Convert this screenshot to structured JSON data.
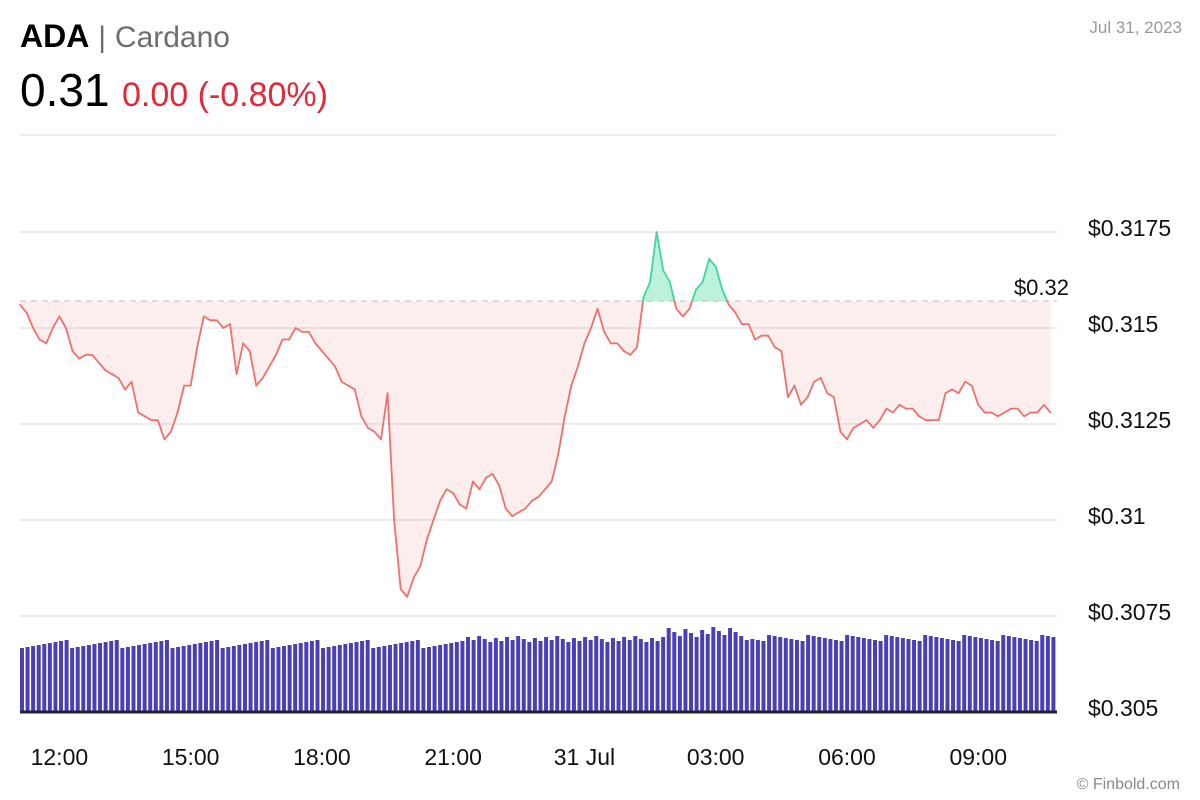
{
  "header": {
    "symbol": "ADA",
    "separator": "|",
    "name": "Cardano",
    "price": "0.31",
    "change": "0.00 (-0.80%)",
    "date": "Jul 31, 2023",
    "watermark": "© Finbold.com"
  },
  "colors": {
    "above_line": "#3ed89a",
    "below_line": "#f07070",
    "volume": "#4b3fb5",
    "change_negative": "#e0293b"
  },
  "chart_data": {
    "type": "line",
    "title": "",
    "xlabel": "",
    "ylabel": "",
    "y_axis_position": "right",
    "grid": true,
    "ylim": [
      0.305,
      0.32
    ],
    "yticks": [
      {
        "label": "$0.3175",
        "value": 0.3175
      },
      {
        "label": "$0.315",
        "value": 0.315
      },
      {
        "label": "$0.3125",
        "value": 0.3125
      },
      {
        "label": "$0.31",
        "value": 0.31
      },
      {
        "label": "$0.3075",
        "value": 0.3075
      },
      {
        "label": "$0.305",
        "value": 0.305
      }
    ],
    "xlim": [
      "2023-07-30 11:06",
      "2023-07-31 10:48"
    ],
    "xticks": [
      {
        "label": "12:00",
        "time": "2023-07-30 12:00"
      },
      {
        "label": "15:00",
        "time": "2023-07-30 15:00"
      },
      {
        "label": "18:00",
        "time": "2023-07-30 18:00"
      },
      {
        "label": "21:00",
        "time": "2023-07-30 21:00"
      },
      {
        "label": "31 Jul",
        "time": "2023-07-31 00:00"
      },
      {
        "label": "03:00",
        "time": "2023-07-31 03:00"
      },
      {
        "label": "06:00",
        "time": "2023-07-31 06:00"
      },
      {
        "label": "09:00",
        "time": "2023-07-31 09:00"
      }
    ],
    "reference_line": {
      "label": "$0.32",
      "value": 0.3157
    },
    "series": [
      {
        "points": [
          [
            "2023-07-30 11:06",
            0.3156
          ],
          [
            "2023-07-30 11:15",
            0.3154
          ],
          [
            "2023-07-30 11:24",
            0.315
          ],
          [
            "2023-07-30 11:33",
            0.3147
          ],
          [
            "2023-07-30 11:42",
            0.3146
          ],
          [
            "2023-07-30 11:51",
            0.315
          ],
          [
            "2023-07-30 12:00",
            0.3153
          ],
          [
            "2023-07-30 12:09",
            0.315
          ],
          [
            "2023-07-30 12:18",
            0.3144
          ],
          [
            "2023-07-30 12:27",
            0.3142
          ],
          [
            "2023-07-30 12:36",
            0.3143
          ],
          [
            "2023-07-30 12:45",
            0.3143
          ],
          [
            "2023-07-30 12:54",
            0.3141
          ],
          [
            "2023-07-30 13:03",
            0.3139
          ],
          [
            "2023-07-30 13:12",
            0.3138
          ],
          [
            "2023-07-30 13:21",
            0.3137
          ],
          [
            "2023-07-30 13:30",
            0.3134
          ],
          [
            "2023-07-30 13:39",
            0.3136
          ],
          [
            "2023-07-30 13:48",
            0.3128
          ],
          [
            "2023-07-30 13:57",
            0.3127
          ],
          [
            "2023-07-30 14:06",
            0.3126
          ],
          [
            "2023-07-30 14:15",
            0.3126
          ],
          [
            "2023-07-30 14:24",
            0.3121
          ],
          [
            "2023-07-30 14:33",
            0.3123
          ],
          [
            "2023-07-30 14:42",
            0.3128
          ],
          [
            "2023-07-30 14:51",
            0.3135
          ],
          [
            "2023-07-30 15:00",
            0.3135
          ],
          [
            "2023-07-30 15:09",
            0.3145
          ],
          [
            "2023-07-30 15:18",
            0.3153
          ],
          [
            "2023-07-30 15:27",
            0.3152
          ],
          [
            "2023-07-30 15:36",
            0.3152
          ],
          [
            "2023-07-30 15:45",
            0.315
          ],
          [
            "2023-07-30 15:54",
            0.3151
          ],
          [
            "2023-07-30 16:03",
            0.3138
          ],
          [
            "2023-07-30 16:12",
            0.3146
          ],
          [
            "2023-07-30 16:21",
            0.3144
          ],
          [
            "2023-07-30 16:30",
            0.3135
          ],
          [
            "2023-07-30 16:39",
            0.3137
          ],
          [
            "2023-07-30 16:48",
            0.314
          ],
          [
            "2023-07-30 16:57",
            0.3143
          ],
          [
            "2023-07-30 17:06",
            0.3147
          ],
          [
            "2023-07-30 17:15",
            0.3147
          ],
          [
            "2023-07-30 17:24",
            0.315
          ],
          [
            "2023-07-30 17:33",
            0.3149
          ],
          [
            "2023-07-30 17:42",
            0.3149
          ],
          [
            "2023-07-30 17:51",
            0.3146
          ],
          [
            "2023-07-30 18:00",
            0.3144
          ],
          [
            "2023-07-30 18:09",
            0.3142
          ],
          [
            "2023-07-30 18:18",
            0.314
          ],
          [
            "2023-07-30 18:27",
            0.3136
          ],
          [
            "2023-07-30 18:36",
            0.3135
          ],
          [
            "2023-07-30 18:45",
            0.3134
          ],
          [
            "2023-07-30 18:54",
            0.3127
          ],
          [
            "2023-07-30 19:03",
            0.3124
          ],
          [
            "2023-07-30 19:12",
            0.3123
          ],
          [
            "2023-07-30 19:21",
            0.3121
          ],
          [
            "2023-07-30 19:30",
            0.3133
          ],
          [
            "2023-07-30 19:39",
            0.31
          ],
          [
            "2023-07-30 19:48",
            0.3082
          ],
          [
            "2023-07-30 19:57",
            0.308
          ],
          [
            "2023-07-30 20:06",
            0.3085
          ],
          [
            "2023-07-30 20:15",
            0.3088
          ],
          [
            "2023-07-30 20:24",
            0.3095
          ],
          [
            "2023-07-30 20:33",
            0.31
          ],
          [
            "2023-07-30 20:42",
            0.3105
          ],
          [
            "2023-07-30 20:51",
            0.3108
          ],
          [
            "2023-07-30 21:00",
            0.3107
          ],
          [
            "2023-07-30 21:09",
            0.3104
          ],
          [
            "2023-07-30 21:18",
            0.3103
          ],
          [
            "2023-07-30 21:27",
            0.311
          ],
          [
            "2023-07-30 21:36",
            0.3108
          ],
          [
            "2023-07-30 21:45",
            0.3111
          ],
          [
            "2023-07-30 21:54",
            0.3112
          ],
          [
            "2023-07-30 22:03",
            0.3109
          ],
          [
            "2023-07-30 22:12",
            0.3103
          ],
          [
            "2023-07-30 22:21",
            0.3101
          ],
          [
            "2023-07-30 22:30",
            0.3102
          ],
          [
            "2023-07-30 22:39",
            0.3103
          ],
          [
            "2023-07-30 22:48",
            0.3105
          ],
          [
            "2023-07-30 22:57",
            0.3106
          ],
          [
            "2023-07-30 23:06",
            0.3108
          ],
          [
            "2023-07-30 23:15",
            0.311
          ],
          [
            "2023-07-30 23:24",
            0.3117
          ],
          [
            "2023-07-30 23:33",
            0.3127
          ],
          [
            "2023-07-30 23:42",
            0.3135
          ],
          [
            "2023-07-30 23:51",
            0.314
          ],
          [
            "2023-07-31 00:00",
            0.3146
          ],
          [
            "2023-07-31 00:09",
            0.315
          ],
          [
            "2023-07-31 00:18",
            0.3155
          ],
          [
            "2023-07-31 00:27",
            0.3149
          ],
          [
            "2023-07-31 00:36",
            0.3146
          ],
          [
            "2023-07-31 00:45",
            0.3146
          ],
          [
            "2023-07-31 00:54",
            0.3144
          ],
          [
            "2023-07-31 01:03",
            0.3143
          ],
          [
            "2023-07-31 01:12",
            0.3145
          ],
          [
            "2023-07-31 01:21",
            0.3158
          ],
          [
            "2023-07-31 01:30",
            0.3162
          ],
          [
            "2023-07-31 01:39",
            0.3175
          ],
          [
            "2023-07-31 01:48",
            0.3165
          ],
          [
            "2023-07-31 01:57",
            0.3162
          ],
          [
            "2023-07-31 02:06",
            0.3155
          ],
          [
            "2023-07-31 02:15",
            0.3153
          ],
          [
            "2023-07-31 02:24",
            0.3155
          ],
          [
            "2023-07-31 02:33",
            0.316
          ],
          [
            "2023-07-31 02:42",
            0.3162
          ],
          [
            "2023-07-31 02:51",
            0.3168
          ],
          [
            "2023-07-31 03:00",
            0.3166
          ],
          [
            "2023-07-31 03:09",
            0.316
          ],
          [
            "2023-07-31 03:18",
            0.3156
          ],
          [
            "2023-07-31 03:27",
            0.3154
          ],
          [
            "2023-07-31 03:36",
            0.3151
          ],
          [
            "2023-07-31 03:45",
            0.3151
          ],
          [
            "2023-07-31 03:54",
            0.3147
          ],
          [
            "2023-07-31 04:03",
            0.3148
          ],
          [
            "2023-07-31 04:12",
            0.3148
          ],
          [
            "2023-07-31 04:21",
            0.3145
          ],
          [
            "2023-07-31 04:30",
            0.3144
          ],
          [
            "2023-07-31 04:39",
            0.3132
          ],
          [
            "2023-07-31 04:48",
            0.3135
          ],
          [
            "2023-07-31 04:57",
            0.313
          ],
          [
            "2023-07-31 05:06",
            0.3132
          ],
          [
            "2023-07-31 05:15",
            0.3136
          ],
          [
            "2023-07-31 05:24",
            0.3137
          ],
          [
            "2023-07-31 05:33",
            0.3133
          ],
          [
            "2023-07-31 05:42",
            0.3132
          ],
          [
            "2023-07-31 05:51",
            0.3123
          ],
          [
            "2023-07-31 06:00",
            0.3121
          ],
          [
            "2023-07-31 06:09",
            0.3124
          ],
          [
            "2023-07-31 06:18",
            0.3125
          ],
          [
            "2023-07-31 06:27",
            0.3126
          ],
          [
            "2023-07-31 06:36",
            0.3124
          ],
          [
            "2023-07-31 06:45",
            0.3126
          ],
          [
            "2023-07-31 06:54",
            0.3129
          ],
          [
            "2023-07-31 07:03",
            0.3128
          ],
          [
            "2023-07-31 07:12",
            0.313
          ],
          [
            "2023-07-31 07:21",
            0.3129
          ],
          [
            "2023-07-31 07:30",
            0.3129
          ],
          [
            "2023-07-31 07:39",
            0.3127
          ],
          [
            "2023-07-31 07:48",
            0.3126
          ],
          [
            "2023-07-31 07:57",
            0.3126
          ],
          [
            "2023-07-31 08:06",
            0.3126
          ],
          [
            "2023-07-31 08:15",
            0.3133
          ],
          [
            "2023-07-31 08:24",
            0.3134
          ],
          [
            "2023-07-31 08:33",
            0.3133
          ],
          [
            "2023-07-31 08:42",
            0.3136
          ],
          [
            "2023-07-31 08:51",
            0.3135
          ],
          [
            "2023-07-31 09:00",
            0.313
          ],
          [
            "2023-07-31 09:09",
            0.3128
          ],
          [
            "2023-07-31 09:18",
            0.3128
          ],
          [
            "2023-07-31 09:27",
            0.3127
          ],
          [
            "2023-07-31 09:36",
            0.3128
          ],
          [
            "2023-07-31 09:45",
            0.3129
          ],
          [
            "2023-07-31 09:54",
            0.3129
          ],
          [
            "2023-07-31 10:03",
            0.3127
          ],
          [
            "2023-07-31 10:12",
            0.3128
          ],
          [
            "2023-07-31 10:21",
            0.3128
          ],
          [
            "2023-07-31 10:30",
            0.313
          ],
          [
            "2023-07-31 10:39",
            0.3128
          ]
        ]
      }
    ],
    "volume_pattern": [
      0.88,
      0.9,
      0.93,
      0.89,
      0.91,
      0.87,
      0.92,
      0.9
    ]
  }
}
